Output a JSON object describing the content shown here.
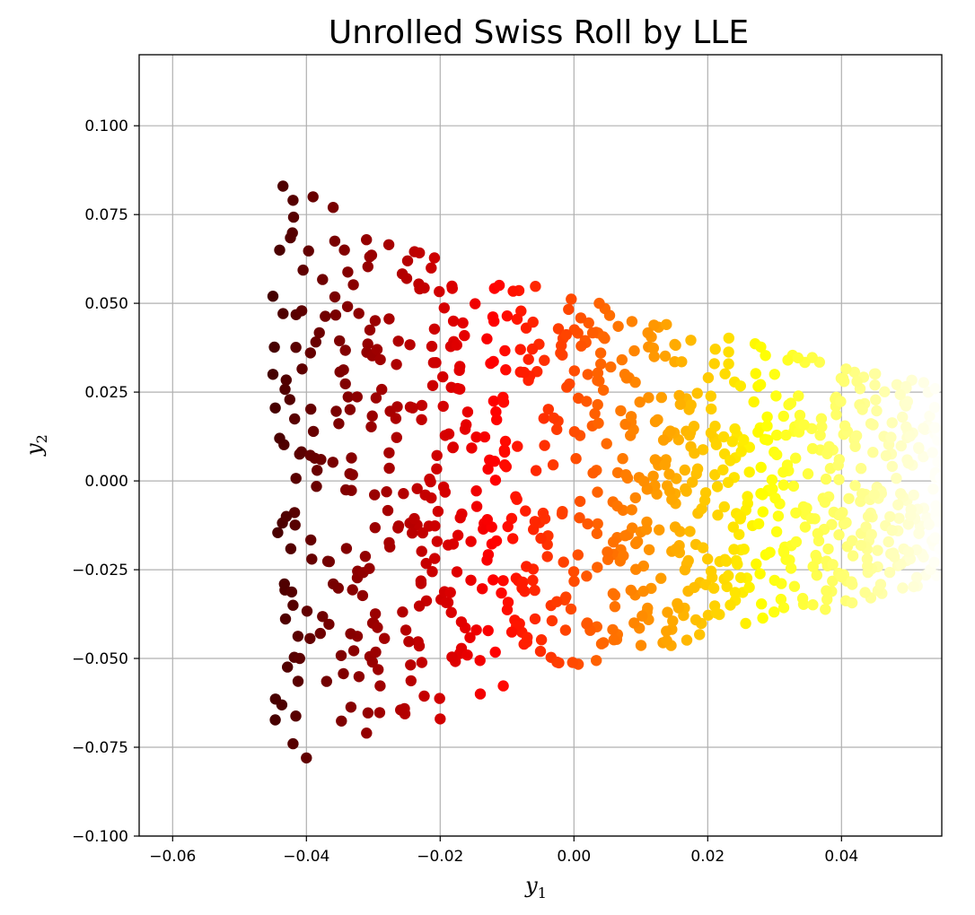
{
  "chart_data": {
    "type": "scatter",
    "title": "Unrolled Swiss Roll by LLE",
    "xlabel": {
      "base": "y",
      "sub": "1"
    },
    "ylabel": {
      "base": "y",
      "sub": "2"
    },
    "xlim": [
      -0.065,
      0.055
    ],
    "ylim": [
      -0.1,
      0.12
    ],
    "x_ticks": [
      -0.06,
      -0.04,
      -0.02,
      0.0,
      0.02,
      0.04
    ],
    "x_tick_labels": [
      "−0.06",
      "−0.04",
      "−0.02",
      "0.00",
      "0.02",
      "0.04"
    ],
    "y_ticks": [
      -0.1,
      -0.075,
      -0.05,
      -0.025,
      0.0,
      0.025,
      0.05,
      0.075,
      0.1
    ],
    "y_tick_labels": [
      "−0.100",
      "−0.075",
      "−0.050",
      "−0.025",
      "0.000",
      "0.025",
      "0.050",
      "0.075",
      "0.100"
    ],
    "grid": true,
    "colormap": "hot",
    "point_count": 1000,
    "distribution": {
      "x_range": [
        -0.045,
        0.055
      ],
      "top_edge_left": 0.083,
      "top_edge_right": 0.027,
      "bottom_edge_left": -0.078,
      "bottom_edge_right": -0.029
    },
    "sample_points": [
      [
        -0.0435,
        0.083
      ],
      [
        -0.042,
        0.079
      ],
      [
        -0.039,
        0.08
      ],
      [
        -0.036,
        0.077
      ],
      [
        -0.044,
        0.065
      ],
      [
        -0.045,
        0.052
      ],
      [
        -0.045,
        0.03
      ],
      [
        -0.044,
        0.012
      ],
      [
        -0.043,
        -0.01
      ],
      [
        -0.042,
        -0.035
      ],
      [
        -0.041,
        -0.05
      ],
      [
        -0.042,
        -0.074
      ],
      [
        -0.04,
        -0.078
      ],
      [
        -0.031,
        -0.071
      ],
      [
        -0.025,
        0.057
      ],
      [
        -0.018,
        0.045
      ],
      [
        -0.013,
        0.04
      ],
      [
        -0.008,
        0.037
      ],
      [
        -0.002,
        0.036
      ],
      [
        0.004,
        0.036
      ],
      [
        0.012,
        0.035
      ],
      [
        0.021,
        0.033
      ],
      [
        0.03,
        0.03
      ],
      [
        0.045,
        0.027
      ],
      [
        0.054,
        0.026
      ],
      [
        -0.02,
        -0.067
      ],
      [
        -0.014,
        -0.06
      ],
      [
        -0.005,
        -0.048
      ],
      [
        0.002,
        -0.04
      ],
      [
        0.009,
        -0.04
      ],
      [
        0.014,
        -0.037
      ],
      [
        0.018,
        -0.03
      ],
      [
        0.03,
        -0.028
      ],
      [
        0.04,
        -0.027
      ],
      [
        0.05,
        -0.02
      ],
      [
        0.054,
        -0.016
      ],
      [
        0.05,
        0.005
      ],
      [
        0.054,
        0.015
      ],
      [
        0.035,
        0.002
      ],
      [
        0.005,
        -0.02
      ]
    ]
  }
}
